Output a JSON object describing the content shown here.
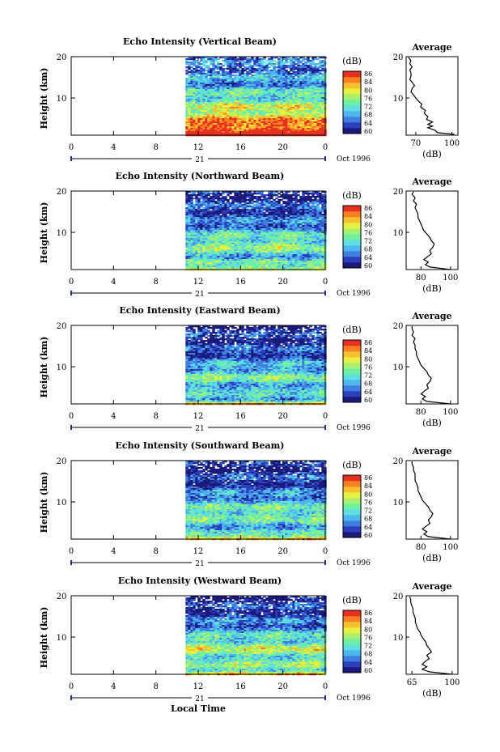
{
  "figure": {
    "xlabel": "Local Time",
    "date_label": "21",
    "month_label": "Oct 1996",
    "colorbar_unit": "(dB)",
    "avg_title": "Average",
    "avg_xlabel": "(dB)",
    "ylabel": "Height (km)"
  },
  "colors": {
    "scale": [
      "#1a1a7a",
      "#2b3fbf",
      "#3f7fe0",
      "#4fb7f0",
      "#5fe0e0",
      "#6ff0a0",
      "#a8f070",
      "#e8f040",
      "#f8c030",
      "#f88020",
      "#e83020"
    ]
  },
  "chart_data": [
    {
      "type": "heatmap",
      "title": "Echo Intensity (Vertical Beam)",
      "ylabel": "Height (km)",
      "xlabel": "Local Time",
      "x_ticks": [
        "0",
        "4",
        "8",
        "12",
        "16",
        "20",
        "0"
      ],
      "xlim": [
        0,
        24
      ],
      "y_ticks": [
        "20",
        "10"
      ],
      "ylim": [
        1,
        20
      ],
      "data_start_hour": 10.8,
      "colorbar": {
        "unit": "(dB)",
        "ticks": [
          "86",
          "84",
          "80",
          "76",
          "72",
          "68",
          "64",
          "60"
        ]
      },
      "intensity_profile": [
        [
          1,
          95
        ],
        [
          2,
          92
        ],
        [
          3,
          90
        ],
        [
          4,
          86
        ],
        [
          5,
          84
        ],
        [
          6,
          82
        ],
        [
          7,
          80
        ],
        [
          8,
          78
        ],
        [
          9,
          76
        ],
        [
          10,
          74
        ],
        [
          11,
          72
        ],
        [
          12,
          70
        ],
        [
          13,
          68
        ],
        [
          14,
          68
        ],
        [
          15,
          67
        ],
        [
          16,
          66
        ],
        [
          17,
          66
        ],
        [
          18,
          65
        ],
        [
          19,
          66
        ],
        [
          20,
          65
        ]
      ],
      "average_profile": {
        "title": "Average",
        "xlabel": "(dB)",
        "x_ticks": [
          "70",
          "100"
        ],
        "xlim": [
          62,
          105
        ],
        "y_ticks": [
          "20",
          "10"
        ],
        "ylim": [
          1,
          20
        ],
        "points": [
          [
            1.2,
            102
          ],
          [
            1.6,
            88
          ],
          [
            2.2,
            86
          ],
          [
            2.8,
            80
          ],
          [
            3.2,
            84
          ],
          [
            3.6,
            80
          ],
          [
            4.2,
            84
          ],
          [
            4.8,
            79
          ],
          [
            5.5,
            80
          ],
          [
            6.3,
            77
          ],
          [
            7.0,
            78
          ],
          [
            7.8,
            74
          ],
          [
            8.5,
            75
          ],
          [
            9.3,
            72
          ],
          [
            10.0,
            70
          ],
          [
            10.8,
            68
          ],
          [
            11.5,
            66
          ],
          [
            12.3,
            67
          ],
          [
            13.0,
            69
          ],
          [
            13.8,
            67
          ],
          [
            14.5,
            65
          ],
          [
            15.3,
            66
          ],
          [
            16.0,
            66
          ],
          [
            16.8,
            65
          ],
          [
            17.5,
            67
          ],
          [
            18.3,
            65
          ],
          [
            19.0,
            66
          ],
          [
            19.8,
            64
          ]
        ]
      }
    },
    {
      "type": "heatmap",
      "title": "Echo Intensity (Northward Beam)",
      "ylabel": "Height (km)",
      "xlabel": "Local Time",
      "x_ticks": [
        "0",
        "4",
        "8",
        "12",
        "16",
        "20",
        "0"
      ],
      "xlim": [
        0,
        24
      ],
      "y_ticks": [
        "20",
        "10"
      ],
      "ylim": [
        1,
        20
      ],
      "data_start_hour": 10.8,
      "colorbar": {
        "unit": "(dB)",
        "ticks": [
          "86",
          "84",
          "80",
          "76",
          "72",
          "68",
          "64",
          "60"
        ]
      },
      "intensity_profile": [
        [
          1,
          82
        ],
        [
          2,
          70
        ],
        [
          3,
          74
        ],
        [
          4,
          70
        ],
        [
          5,
          72
        ],
        [
          6,
          74
        ],
        [
          7,
          76
        ],
        [
          8,
          74
        ],
        [
          9,
          72
        ],
        [
          10,
          70
        ],
        [
          11,
          68
        ],
        [
          12,
          66
        ],
        [
          13,
          65
        ],
        [
          14,
          64
        ],
        [
          15,
          64
        ],
        [
          16,
          63
        ],
        [
          17,
          63
        ],
        [
          18,
          62
        ],
        [
          19,
          61
        ],
        [
          20,
          61
        ]
      ],
      "average_profile": {
        "title": "Average",
        "xlabel": "(dB)",
        "x_ticks": [
          "80",
          "100"
        ],
        "xlim": [
          70,
          105
        ],
        "y_ticks": [
          "20",
          "10"
        ],
        "ylim": [
          1,
          20
        ],
        "points": [
          [
            1.0,
            100
          ],
          [
            1.6,
            86
          ],
          [
            2.2,
            83
          ],
          [
            2.8,
            85
          ],
          [
            3.4,
            82
          ],
          [
            4.0,
            84
          ],
          [
            4.8,
            87
          ],
          [
            5.6,
            86
          ],
          [
            6.4,
            88
          ],
          [
            7.2,
            89
          ],
          [
            8.0,
            87
          ],
          [
            8.8,
            86
          ],
          [
            9.6,
            84
          ],
          [
            10.4,
            82
          ],
          [
            11.2,
            81
          ],
          [
            12.0,
            80
          ],
          [
            12.8,
            79
          ],
          [
            13.6,
            78
          ],
          [
            14.4,
            78
          ],
          [
            15.2,
            77
          ],
          [
            16.0,
            76
          ],
          [
            16.8,
            77
          ],
          [
            17.6,
            75
          ],
          [
            18.4,
            76
          ],
          [
            19.2,
            74
          ],
          [
            19.8,
            75
          ]
        ]
      }
    },
    {
      "type": "heatmap",
      "title": "Echo Intensity (Eastward Beam)",
      "ylabel": "Height (km)",
      "xlabel": "Local Time",
      "x_ticks": [
        "0",
        "4",
        "8",
        "12",
        "16",
        "20",
        "0"
      ],
      "xlim": [
        0,
        24
      ],
      "y_ticks": [
        "20",
        "10"
      ],
      "ylim": [
        1,
        20
      ],
      "data_start_hour": 10.8,
      "colorbar": {
        "unit": "(dB)",
        "ticks": [
          "86",
          "84",
          "80",
          "76",
          "72",
          "68",
          "64",
          "60"
        ]
      },
      "intensity_profile": [
        [
          1,
          84
        ],
        [
          2,
          70
        ],
        [
          3,
          72
        ],
        [
          4,
          68
        ],
        [
          5,
          70
        ],
        [
          6,
          72
        ],
        [
          7,
          74
        ],
        [
          8,
          73
        ],
        [
          9,
          71
        ],
        [
          10,
          69
        ],
        [
          11,
          67
        ],
        [
          12,
          65
        ],
        [
          13,
          64
        ],
        [
          14,
          63
        ],
        [
          15,
          63
        ],
        [
          16,
          62
        ],
        [
          17,
          62
        ],
        [
          18,
          61
        ],
        [
          19,
          61
        ],
        [
          20,
          60
        ]
      ],
      "average_profile": {
        "title": "Average",
        "xlabel": "(dB)",
        "x_ticks": [
          "80",
          "100"
        ],
        "xlim": [
          70,
          105
        ],
        "y_ticks": [
          "20",
          "10"
        ],
        "ylim": [
          1,
          20
        ],
        "points": [
          [
            1.0,
            100
          ],
          [
            1.6,
            84
          ],
          [
            2.2,
            81
          ],
          [
            2.8,
            83
          ],
          [
            3.4,
            80
          ],
          [
            4.0,
            82
          ],
          [
            4.8,
            85
          ],
          [
            5.6,
            84
          ],
          [
            6.4,
            86
          ],
          [
            7.2,
            87
          ],
          [
            8.0,
            85
          ],
          [
            8.8,
            84
          ],
          [
            9.6,
            82
          ],
          [
            10.4,
            80
          ],
          [
            11.2,
            79
          ],
          [
            12.0,
            78
          ],
          [
            12.8,
            77
          ],
          [
            13.6,
            77
          ],
          [
            14.4,
            76
          ],
          [
            15.2,
            76
          ],
          [
            16.0,
            75
          ],
          [
            16.8,
            76
          ],
          [
            17.6,
            74
          ],
          [
            18.4,
            75
          ],
          [
            19.2,
            74
          ],
          [
            19.8,
            74
          ]
        ]
      }
    },
    {
      "type": "heatmap",
      "title": "Echo Intensity (Southward Beam)",
      "ylabel": "Height (km)",
      "xlabel": "Local Time",
      "x_ticks": [
        "0",
        "4",
        "8",
        "12",
        "16",
        "20",
        "0"
      ],
      "xlim": [
        0,
        24
      ],
      "y_ticks": [
        "20",
        "10"
      ],
      "ylim": [
        1,
        20
      ],
      "data_start_hour": 10.8,
      "colorbar": {
        "unit": "(dB)",
        "ticks": [
          "86",
          "84",
          "80",
          "76",
          "72",
          "68",
          "64",
          "60"
        ]
      },
      "intensity_profile": [
        [
          1,
          84
        ],
        [
          2,
          70
        ],
        [
          3,
          73
        ],
        [
          4,
          69
        ],
        [
          5,
          71
        ],
        [
          6,
          73
        ],
        [
          7,
          75
        ],
        [
          8,
          74
        ],
        [
          9,
          72
        ],
        [
          10,
          70
        ],
        [
          11,
          68
        ],
        [
          12,
          66
        ],
        [
          13,
          64
        ],
        [
          14,
          63
        ],
        [
          15,
          63
        ],
        [
          16,
          62
        ],
        [
          17,
          62
        ],
        [
          18,
          61
        ],
        [
          19,
          61
        ],
        [
          20,
          60
        ]
      ],
      "average_profile": {
        "title": "Average",
        "xlabel": "(dB)",
        "x_ticks": [
          "80",
          "100"
        ],
        "xlim": [
          70,
          105
        ],
        "y_ticks": [
          "20",
          "10"
        ],
        "ylim": [
          1,
          20
        ],
        "points": [
          [
            1.0,
            100
          ],
          [
            1.6,
            85
          ],
          [
            2.2,
            82
          ],
          [
            2.8,
            84
          ],
          [
            3.4,
            81
          ],
          [
            4.0,
            83
          ],
          [
            4.8,
            86
          ],
          [
            5.6,
            85
          ],
          [
            6.4,
            87
          ],
          [
            7.2,
            88
          ],
          [
            8.0,
            86
          ],
          [
            8.8,
            85
          ],
          [
            9.6,
            83
          ],
          [
            10.4,
            81
          ],
          [
            11.2,
            80
          ],
          [
            12.0,
            79
          ],
          [
            12.8,
            78
          ],
          [
            13.6,
            78
          ],
          [
            14.4,
            77
          ],
          [
            15.2,
            76
          ],
          [
            16.0,
            76
          ],
          [
            16.8,
            76
          ],
          [
            17.6,
            75
          ],
          [
            18.4,
            75
          ],
          [
            19.2,
            74
          ],
          [
            19.8,
            74
          ]
        ]
      }
    },
    {
      "type": "heatmap",
      "title": "Echo Intensity (Westward Beam)",
      "ylabel": "Height (km)",
      "xlabel": "Local Time",
      "x_ticks": [
        "0",
        "4",
        "8",
        "12",
        "16",
        "20",
        "0"
      ],
      "xlim": [
        0,
        24
      ],
      "y_ticks": [
        "20",
        "10"
      ],
      "ylim": [
        1,
        20
      ],
      "data_start_hour": 10.8,
      "colorbar": {
        "unit": "(dB)",
        "ticks": [
          "86",
          "84",
          "80",
          "76",
          "72",
          "68",
          "64",
          "60"
        ]
      },
      "intensity_profile": [
        [
          1,
          86
        ],
        [
          2,
          74
        ],
        [
          3,
          76
        ],
        [
          4,
          72
        ],
        [
          5,
          74
        ],
        [
          6,
          76
        ],
        [
          7,
          78
        ],
        [
          8,
          76
        ],
        [
          9,
          74
        ],
        [
          10,
          72
        ],
        [
          11,
          70
        ],
        [
          12,
          68
        ],
        [
          13,
          66
        ],
        [
          14,
          65
        ],
        [
          15,
          64
        ],
        [
          16,
          63
        ],
        [
          17,
          63
        ],
        [
          18,
          62
        ],
        [
          19,
          61
        ],
        [
          20,
          61
        ]
      ],
      "average_profile": {
        "title": "Average",
        "xlabel": "(dB)",
        "x_ticks": [
          "65",
          "100"
        ],
        "xlim": [
          60,
          105
        ],
        "y_ticks": [
          "20",
          "10"
        ],
        "ylim": [
          1,
          20
        ],
        "points": [
          [
            1.0,
            100
          ],
          [
            1.6,
            80
          ],
          [
            2.2,
            74
          ],
          [
            2.8,
            78
          ],
          [
            3.4,
            74
          ],
          [
            4.0,
            76
          ],
          [
            4.8,
            80
          ],
          [
            5.6,
            78
          ],
          [
            6.4,
            82
          ],
          [
            7.2,
            80
          ],
          [
            8.0,
            78
          ],
          [
            8.8,
            77
          ],
          [
            9.6,
            75
          ],
          [
            10.4,
            73
          ],
          [
            11.2,
            72
          ],
          [
            12.0,
            70
          ],
          [
            12.8,
            69
          ],
          [
            13.6,
            68
          ],
          [
            14.4,
            68
          ],
          [
            15.2,
            67
          ],
          [
            16.0,
            66
          ],
          [
            16.8,
            66
          ],
          [
            17.6,
            65
          ],
          [
            18.4,
            64
          ],
          [
            19.2,
            64
          ],
          [
            19.8,
            63
          ]
        ]
      }
    }
  ]
}
